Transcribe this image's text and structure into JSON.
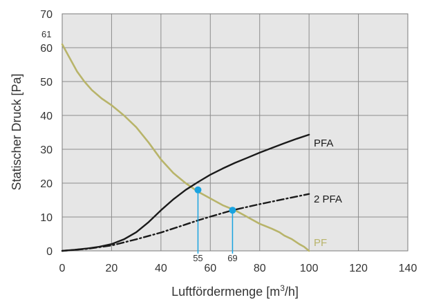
{
  "chart_data": {
    "type": "line",
    "xlabel": "Luftfördermenge [m",
    "xlabel_sup": "3",
    "xlabel_end": "/h]",
    "ylabel": "Statischer Druck [Pa]",
    "xlim": [
      0,
      140
    ],
    "ylim": [
      0,
      70
    ],
    "xticks": [
      "0",
      "20",
      "40",
      "60",
      "80",
      "100",
      "120",
      "140"
    ],
    "yticks": [
      "0",
      "10",
      "20",
      "30",
      "40",
      "50",
      "60",
      "70"
    ],
    "grid": true,
    "series": [
      {
        "name": "PF",
        "color": "#b8b46a",
        "style": "solid",
        "x": [
          0,
          3,
          6,
          9,
          12,
          16,
          20,
          25,
          30,
          35,
          40,
          45,
          50,
          55,
          60,
          65,
          70,
          75,
          80,
          85,
          88,
          90,
          93,
          96,
          98,
          100
        ],
        "y": [
          61,
          57,
          53,
          50,
          47.5,
          45,
          43,
          40,
          36.5,
          32,
          27,
          23,
          20,
          17.5,
          15.5,
          13.5,
          12,
          10,
          8,
          6.5,
          5.5,
          4.5,
          3.5,
          2,
          1.2,
          0
        ]
      },
      {
        "name": "PFA",
        "color": "#1a1a1a",
        "style": "solid",
        "x": [
          0,
          5,
          10,
          15,
          20,
          25,
          30,
          35,
          40,
          45,
          50,
          55,
          60,
          65,
          70,
          75,
          80,
          85,
          90,
          95,
          100
        ],
        "y": [
          0,
          0.3,
          0.7,
          1.2,
          2,
          3.4,
          5.5,
          8.5,
          12,
          15.2,
          18,
          20.3,
          22.5,
          24.3,
          26,
          27.5,
          29,
          30.4,
          31.8,
          33.1,
          34.3
        ]
      },
      {
        "name": "2 PFA",
        "color": "#1a1a1a",
        "style": "dashdot",
        "x": [
          0,
          10,
          20,
          30,
          40,
          50,
          55,
          60,
          69,
          80,
          90,
          100
        ],
        "y": [
          0,
          0.6,
          1.6,
          3.4,
          5.4,
          7.8,
          9,
          10.1,
          12,
          13.8,
          15.3,
          16.8
        ]
      }
    ],
    "markers": [
      {
        "label": "55",
        "x": 55,
        "y": 18,
        "color": "#1aa3e0"
      },
      {
        "label": "69",
        "x": 69,
        "y": 12,
        "color": "#1aa3e0"
      }
    ],
    "annotations": [
      {
        "text": "61",
        "x": 0,
        "y": 61
      }
    ]
  }
}
